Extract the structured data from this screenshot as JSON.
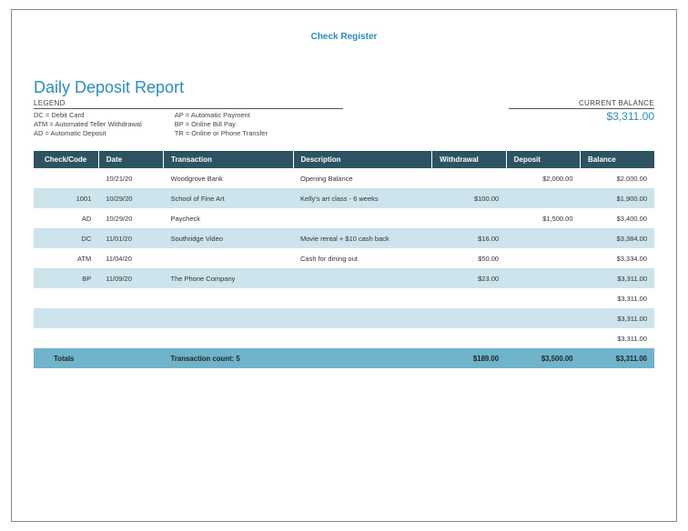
{
  "header": {
    "topLink": "Check Register"
  },
  "title": "Daily Deposit Report",
  "legend": {
    "heading": "LEGEND",
    "col1": [
      "DC = Debit Card",
      "ATM = Automated Teller Withdrawal",
      "AD = Automatic Deposit"
    ],
    "col2": [
      "AP = Automatic Payment",
      "BP = Online Bill Pay",
      "TR = Online or Phone Transfer"
    ]
  },
  "currentBalance": {
    "label": "CURRENT BALANCE",
    "value": "$3,311.00"
  },
  "table": {
    "headers": {
      "check": "Check/Code",
      "date": "Date",
      "transaction": "Transaction",
      "description": "Description",
      "withdrawal": "Withdrawal",
      "deposit": "Deposit",
      "balance": "Balance"
    },
    "rows": [
      {
        "check": "",
        "date": "10/21/20",
        "transaction": "Woodgrove Bank",
        "description": "Opening Balance",
        "withdrawal": "",
        "deposit": "$2,000.00",
        "balance": "$2,000.00"
      },
      {
        "check": "1001",
        "date": "10/29/20",
        "transaction": "School of Fine Art",
        "description": "Kelly's art class - 6 weeks",
        "withdrawal": "$100.00",
        "deposit": "",
        "balance": "$1,900.00"
      },
      {
        "check": "AD",
        "date": "10/29/20",
        "transaction": "Paycheck",
        "description": "",
        "withdrawal": "",
        "deposit": "$1,500.00",
        "balance": "$3,400.00"
      },
      {
        "check": "DC",
        "date": "11/01/20",
        "transaction": "Southridge Video",
        "description": "Movie rental + $10 cash back",
        "withdrawal": "$16.00",
        "deposit": "",
        "balance": "$3,384.00"
      },
      {
        "check": "ATM",
        "date": "11/04/20",
        "transaction": "",
        "description": "Cash for dining out",
        "withdrawal": "$50.00",
        "deposit": "",
        "balance": "$3,334.00"
      },
      {
        "check": "BP",
        "date": "11/09/20",
        "transaction": "The Phone Company",
        "description": "",
        "withdrawal": "$23.00",
        "deposit": "",
        "balance": "$3,311.00"
      },
      {
        "check": "",
        "date": "",
        "transaction": "",
        "description": "",
        "withdrawal": "",
        "deposit": "",
        "balance": "$3,311.00"
      },
      {
        "check": "",
        "date": "",
        "transaction": "",
        "description": "",
        "withdrawal": "",
        "deposit": "",
        "balance": "$3,311.00"
      },
      {
        "check": "",
        "date": "",
        "transaction": "",
        "description": "",
        "withdrawal": "",
        "deposit": "",
        "balance": "$3,311.00"
      }
    ],
    "totals": {
      "label": "Totals",
      "transactionCount": "Transaction count: 5",
      "withdrawal": "$189.00",
      "deposit": "$3,500.00",
      "balance": "$3,311.00"
    }
  },
  "colors": {
    "accent": "#2a8cbf",
    "headerBg": "#2d5363",
    "rowAlt": "#cde4ec",
    "totalsBg": "#6fb4ca"
  }
}
